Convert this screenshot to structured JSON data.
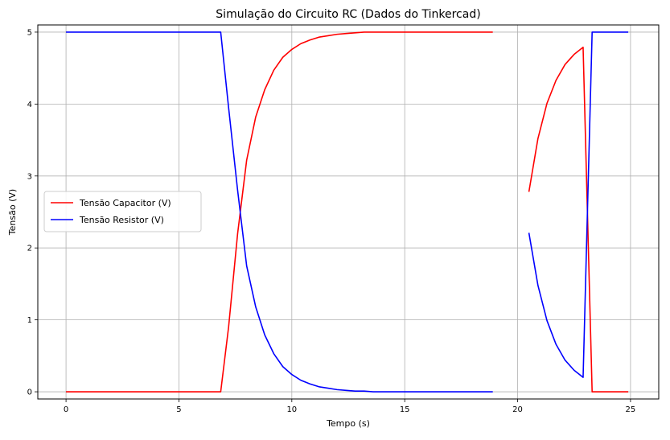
{
  "chart_data": {
    "type": "line",
    "title": "Simulação do Circuito RC (Dados do Tinkercad)",
    "xlabel": "Tempo (s)",
    "ylabel": "Tensão (V)",
    "xlim": [
      -1.25,
      26.25
    ],
    "ylim": [
      -0.1,
      5.1
    ],
    "xticks": [
      0,
      5,
      10,
      15,
      20,
      25
    ],
    "yticks": [
      0,
      1,
      2,
      3,
      4,
      5
    ],
    "grid": true,
    "legend": "center-left",
    "series": [
      {
        "name": "Tensão Capacitor (V)",
        "color": "#ff0000",
        "segments": [
          [
            [
              0,
              0
            ],
            [
              6.85,
              0
            ],
            [
              7.2,
              0.9
            ],
            [
              7.6,
              2.2
            ],
            [
              8.0,
              3.22
            ],
            [
              8.4,
              3.82
            ],
            [
              8.8,
              4.2
            ],
            [
              9.2,
              4.47
            ],
            [
              9.6,
              4.65
            ],
            [
              10.0,
              4.76
            ],
            [
              10.4,
              4.84
            ],
            [
              10.8,
              4.89
            ],
            [
              11.2,
              4.93
            ],
            [
              11.6,
              4.95
            ],
            [
              12.0,
              4.97
            ],
            [
              12.4,
              4.98
            ],
            [
              12.8,
              4.99
            ],
            [
              13.2,
              5.0
            ],
            [
              13.6,
              5.0
            ],
            [
              18.9,
              5.0
            ]
          ],
          [
            [
              20.5,
              2.78
            ],
            [
              20.9,
              3.52
            ],
            [
              21.3,
              4.01
            ],
            [
              21.7,
              4.33
            ],
            [
              22.1,
              4.55
            ],
            [
              22.5,
              4.69
            ],
            [
              22.9,
              4.79
            ],
            [
              23.3,
              0
            ],
            [
              24.9,
              0
            ]
          ]
        ]
      },
      {
        "name": "Tensão Resistor (V)",
        "color": "#0000ff",
        "segments": [
          [
            [
              0,
              5
            ],
            [
              6.85,
              5
            ],
            [
              7.2,
              3.95
            ],
            [
              7.6,
              2.8
            ],
            [
              8.0,
              1.75
            ],
            [
              8.4,
              1.18
            ],
            [
              8.8,
              0.79
            ],
            [
              9.2,
              0.53
            ],
            [
              9.6,
              0.35
            ],
            [
              10.0,
              0.24
            ],
            [
              10.4,
              0.16
            ],
            [
              10.8,
              0.11
            ],
            [
              11.2,
              0.07
            ],
            [
              11.6,
              0.05
            ],
            [
              12.0,
              0.03
            ],
            [
              12.4,
              0.02
            ],
            [
              12.8,
              0.01
            ],
            [
              13.2,
              0.01
            ],
            [
              13.6,
              0.0
            ],
            [
              18.9,
              0.0
            ]
          ],
          [
            [
              20.5,
              2.21
            ],
            [
              20.9,
              1.48
            ],
            [
              21.3,
              0.99
            ],
            [
              21.7,
              0.66
            ],
            [
              22.1,
              0.44
            ],
            [
              22.5,
              0.3
            ],
            [
              22.9,
              0.2
            ],
            [
              23.3,
              5.0
            ],
            [
              24.9,
              5.0
            ]
          ]
        ]
      }
    ]
  }
}
